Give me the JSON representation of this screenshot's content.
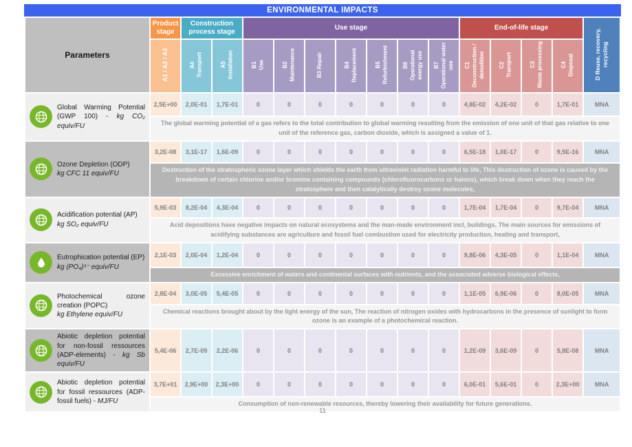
{
  "title": "ENVIRONMENTAL IMPACTS",
  "page_number": "11",
  "colors": {
    "title_bar": "#3A64ED",
    "product_stage": "#F79646",
    "construction_stage": "#4BACC6",
    "use_stage": "#8064A2",
    "end_of_life_stage": "#C0504D",
    "d_column": "#4F81BD",
    "icon_green": "#77B82A"
  },
  "table": {
    "parameters_header": "Parameters",
    "groups": [
      {
        "label": "Product stage"
      },
      {
        "label": "Construction process stage"
      },
      {
        "label": "Use stage"
      },
      {
        "label": "End-of-life stage"
      }
    ],
    "d_header": "D Reuse, recovery, recycling",
    "columns": [
      {
        "code": "A1 / A2 / A3",
        "label": ""
      },
      {
        "code": "A4",
        "label": "Transport"
      },
      {
        "code": "A5",
        "label": "Installation"
      },
      {
        "code": "B1",
        "label": "Use"
      },
      {
        "code": "B2",
        "label": "Maintenance"
      },
      {
        "code": "B3 Repair",
        "label": ""
      },
      {
        "code": "B4",
        "label": "Replacement"
      },
      {
        "code": "B5",
        "label": "Refurbishment"
      },
      {
        "code": "B6",
        "label": "Operational energy use"
      },
      {
        "code": "B7",
        "label": "Operational water use"
      },
      {
        "code": "C1",
        "label": "Deconstruction / demolition"
      },
      {
        "code": "C2",
        "label": "Transport"
      },
      {
        "code": "C3",
        "label": "Waste processing"
      },
      {
        "code": "C4",
        "label": "Disposal"
      }
    ],
    "rows": [
      {
        "id": "gwp",
        "icon": "gwp-globe-co2-icon",
        "name": "Global Warming Potential (GWP 100) -",
        "unit": "kg CO₂ equiv/FU",
        "unit_inline": true,
        "shade": "light",
        "values": [
          "2,5E+00",
          "2,0E-01",
          "1,7E-01",
          "0",
          "0",
          "0",
          "0",
          "0",
          "0",
          "0",
          "4,8E-02",
          "4,2E-02",
          "0",
          "1,7E-01",
          "MNA"
        ],
        "description": "The global warming potential of a gas refers to the total contribution to global warming resulting from the emission of one unit of that gas relative to one unit of the reference gas, carbon dioxide, which is assigned a value of 1."
      },
      {
        "id": "odp",
        "icon": "odp-globe-icon",
        "name": "Ozone Depletion (ODP)",
        "unit": "kg CFC 11 equiv/FU",
        "unit_inline": false,
        "shade": "dark",
        "values": [
          "3,2E-08",
          "3,1E-17",
          "1,6E-09",
          "0",
          "0",
          "0",
          "0",
          "0",
          "0",
          "0",
          "6,5E-18",
          "1,0E-17",
          "0",
          "9,5E-16",
          "MNA"
        ],
        "description": "Destruction of the stratospheric ozone layer which shields the earth from ultraviolet radiation harmful to life, This destruction of ozone is caused by the breakdown of certain chlorine and/or bromine containing compounds (chlorofluorocarbons or halons), which break down when they reach the stratosphere and then catalytically destroy ozone molecules,"
      },
      {
        "id": "ap",
        "icon": "ap-globe-icon",
        "name": "Acidification potential (AP)",
        "unit": "kg SO₂ equiv/FU",
        "unit_inline": false,
        "shade": "light",
        "values": [
          "5,9E-03",
          "8,2E-04",
          "4,3E-04",
          "0",
          "0",
          "0",
          "0",
          "0",
          "0",
          "0",
          "1,7E-04",
          "1,7E-04",
          "0",
          "9,7E-04",
          "MNA"
        ],
        "description": "Acid depositions have negative impacts on natural ecosystems and the man-made environment incl, buildings, The main sources for emissions of acidifying substances are agriculture and fossil fuel combustion used for electricity production, heating and transport,"
      },
      {
        "id": "ep",
        "icon": "ep-water-drop-icon",
        "name": "Eutrophication potential (EP)",
        "unit": "kg (PO₄)³⁻ equiv/FU",
        "unit_inline": false,
        "shade": "dark",
        "values": [
          "2,1E-03",
          "2,0E-04",
          "1,2E-04",
          "0",
          "0",
          "0",
          "0",
          "0",
          "0",
          "0",
          "9,8E-06",
          "4,3E-05",
          "0",
          "1,1E-04",
          "MNA"
        ],
        "description": "Excessive enrichment of waters and continental surfaces with nutrients, and the associated adverse biological effects,"
      },
      {
        "id": "popc",
        "icon": "popc-globe-icon",
        "name": "Photochemical ozone creation (POPC)",
        "unit": "kg Ethylene equiv/FU",
        "unit_inline": false,
        "shade": "light",
        "values": [
          "2,8E-04",
          "3,0E-05",
          "5,4E-05",
          "0",
          "0",
          "0",
          "0",
          "0",
          "0",
          "0",
          "1,1E-05",
          "6,9E-06",
          "0",
          "8,0E-05",
          "MNA"
        ],
        "description": "Chemical reactions brought about by the light energy of the sun, The reaction of nitrogen oxides with hydrocarbons in the presence of sunlight to form ozone is an example of a photochemical reaction."
      },
      {
        "id": "adp-elements",
        "icon": "adp-elements-globe-icon",
        "name": "Abiotic depletion potential for non-fossil ressources (ADP-elements) -",
        "unit": "kg Sb equiv/FU",
        "unit_inline": true,
        "shade": "dark",
        "values": [
          "5,4E-06",
          "2,7E-09",
          "2,2E-06",
          "0",
          "0",
          "0",
          "0",
          "0",
          "0",
          "0",
          "1,2E-09",
          "3,6E-09",
          "0",
          "5,8E-08",
          "MNA"
        ],
        "description": null
      },
      {
        "id": "adp-fossil",
        "icon": "adp-fossil-globe-icon",
        "name": "Abiotic depletion potential for fossil ressources (ADP-fossil fuels) -",
        "unit": "MJ/FU",
        "unit_inline": true,
        "shade": "light",
        "values": [
          "3,7E+01",
          "2,9E+00",
          "2,3E+00",
          "0",
          "0",
          "0",
          "0",
          "0",
          "0",
          "0",
          "6,0E-01",
          "5,6E-01",
          "0",
          "2,3E+00",
          "MNA"
        ],
        "description": "Consumption of non-renewable resources, thereby lowering their availability for future generations."
      }
    ]
  }
}
